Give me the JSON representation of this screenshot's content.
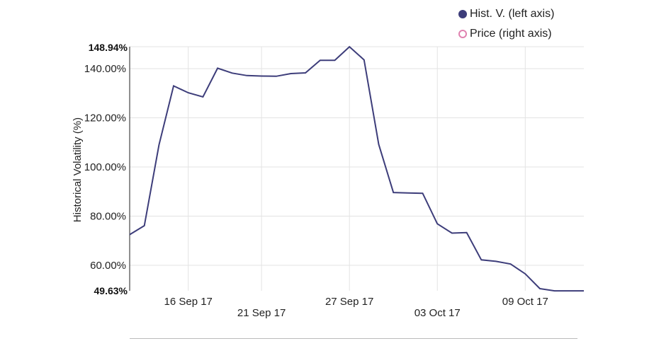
{
  "chart_data": {
    "type": "line",
    "ylabel": "Historical Volatility (%)",
    "ylim": [
      49.63,
      148.94
    ],
    "y_ticks": [
      "60.00%",
      "80.00%",
      "100.00%",
      "120.00%",
      "140.00%"
    ],
    "y_ticks_values": [
      60,
      80,
      100,
      120,
      140
    ],
    "y_min_label": "49.63%",
    "y_max_label": "148.94%",
    "x_range": [
      "2017-09-12",
      "2017-10-13"
    ],
    "x_ticks": [
      {
        "date": "2017-09-16",
        "label": "16 Sep 17",
        "row": 0
      },
      {
        "date": "2017-09-21",
        "label": "21 Sep 17",
        "row": 1
      },
      {
        "date": "2017-09-27",
        "label": "27 Sep 17",
        "row": 0
      },
      {
        "date": "2017-10-03",
        "label": "03 Oct 17",
        "row": 1
      },
      {
        "date": "2017-10-09",
        "label": "09 Oct 17",
        "row": 0
      }
    ],
    "grid": true,
    "legend_position": "top-right",
    "legend": [
      {
        "label": "Hist. V. (left axis)",
        "color": "#3d3d7a",
        "style": "filled"
      },
      {
        "label": "Price (right axis)",
        "color": "#e082b0",
        "style": "hollow"
      }
    ],
    "series": [
      {
        "name": "Hist. V. (left axis)",
        "color": "#3d3d7a",
        "x": [
          "2017-09-12",
          "2017-09-13",
          "2017-09-14",
          "2017-09-15",
          "2017-09-16",
          "2017-09-17",
          "2017-09-18",
          "2017-09-19",
          "2017-09-20",
          "2017-09-21",
          "2017-09-22",
          "2017-09-23",
          "2017-09-24",
          "2017-09-25",
          "2017-09-26",
          "2017-09-27",
          "2017-09-28",
          "2017-09-29",
          "2017-09-30",
          "2017-10-01",
          "2017-10-02",
          "2017-10-03",
          "2017-10-04",
          "2017-10-05",
          "2017-10-06",
          "2017-10-07",
          "2017-10-08",
          "2017-10-09",
          "2017-10-10",
          "2017-10-11",
          "2017-10-12"
        ],
        "values": [
          72.5,
          76.1,
          109.0,
          133.0,
          130.2,
          128.5,
          140.2,
          138.2,
          137.2,
          137.0,
          136.9,
          138.0,
          138.3,
          143.4,
          143.4,
          148.9,
          143.6,
          109.2,
          89.6,
          89.4,
          89.3,
          76.9,
          73.1,
          73.3,
          62.2,
          61.6,
          60.5,
          56.5,
          50.5,
          49.6,
          null
        ]
      }
    ]
  }
}
